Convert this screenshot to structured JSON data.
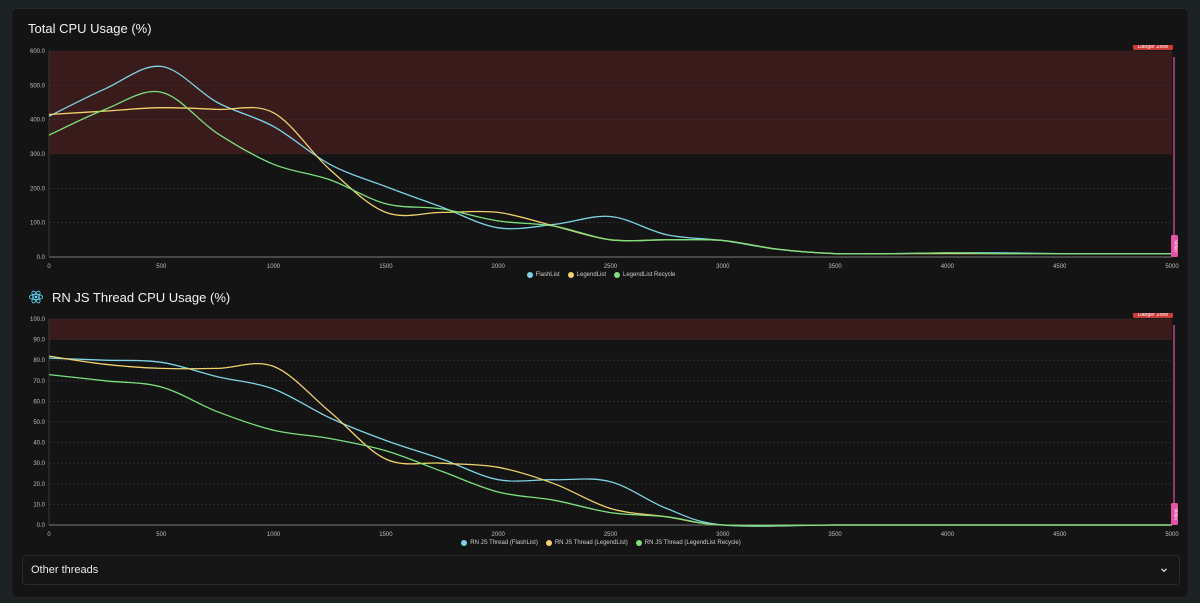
{
  "colors": {
    "flash": "#7fd3e6",
    "legend": "#f1d36b",
    "recycle": "#7de07e",
    "danger_fill": "#3a1b1b",
    "danger_tag": "#cc3a3a",
    "video": "#e255a6"
  },
  "sections": {
    "cpu_title": "Total CPU Usage (%)",
    "js_title": "RN JS Thread CPU Usage (%)",
    "other_threads": "Other threads"
  },
  "chart_data": [
    {
      "type": "line",
      "title": "Total CPU Usage (%)",
      "xlim": [
        0,
        5000
      ],
      "ylim": [
        0,
        600
      ],
      "xticks": [
        0,
        500,
        1000,
        1500,
        2000,
        2500,
        3000,
        3500,
        4000,
        4500,
        5000
      ],
      "yticks": [
        0,
        100,
        200,
        300,
        400,
        500,
        600
      ],
      "danger_zone": {
        "label": "Danger Zone",
        "from": 300,
        "to": 600
      },
      "video_label": "Video",
      "series": [
        {
          "name": "FlashList",
          "color_key": "flash",
          "x": [
            0,
            250,
            500,
            750,
            1000,
            1250,
            1500,
            1750,
            2000,
            2250,
            2500,
            2750,
            3000,
            3250,
            3500,
            3750,
            4000,
            4250,
            4500,
            4750,
            5000
          ],
          "values": [
            410,
            490,
            555,
            450,
            380,
            270,
            205,
            145,
            85,
            95,
            118,
            65,
            48,
            22,
            10,
            10,
            12,
            12,
            10,
            10,
            10
          ]
        },
        {
          "name": "LegendList",
          "color_key": "legend",
          "x": [
            0,
            250,
            500,
            750,
            1000,
            1250,
            1500,
            1750,
            2000,
            2250,
            2500,
            2750,
            3000,
            3250,
            3500,
            3750,
            4000,
            4250,
            4500,
            4750,
            5000
          ],
          "values": [
            415,
            425,
            435,
            430,
            420,
            255,
            130,
            130,
            130,
            90,
            50,
            50,
            48,
            22,
            10,
            10,
            10,
            10,
            10,
            10,
            10
          ]
        },
        {
          "name": "LegendList Recycle",
          "color_key": "recycle",
          "x": [
            0,
            250,
            500,
            750,
            1000,
            1250,
            1500,
            1750,
            2000,
            2250,
            2500,
            2750,
            3000,
            3250,
            3500,
            3750,
            4000,
            4250,
            4500,
            4750,
            5000
          ],
          "values": [
            355,
            430,
            480,
            360,
            270,
            225,
            155,
            140,
            105,
            90,
            50,
            50,
            48,
            22,
            10,
            10,
            12,
            10,
            10,
            10,
            10
          ]
        }
      ]
    },
    {
      "type": "line",
      "title": "RN JS Thread CPU Usage (%)",
      "xlim": [
        0,
        5000
      ],
      "ylim": [
        0,
        100
      ],
      "xticks": [
        0,
        500,
        1000,
        1500,
        2000,
        2500,
        3000,
        3500,
        4000,
        4500,
        5000
      ],
      "yticks": [
        0,
        10,
        20,
        30,
        40,
        50,
        60,
        70,
        80,
        90,
        100
      ],
      "danger_zone": {
        "label": "Danger Zone",
        "from": 90,
        "to": 100
      },
      "video_label": "Video",
      "series": [
        {
          "name": "RN JS Thread (FlashList)",
          "color_key": "flash",
          "x": [
            0,
            250,
            500,
            750,
            1000,
            1250,
            1500,
            1750,
            2000,
            2250,
            2500,
            2750,
            3000,
            3500,
            4000,
            4500,
            5000
          ],
          "values": [
            81,
            80,
            79,
            72,
            66,
            52,
            41,
            32,
            22,
            22,
            21,
            8,
            0,
            0,
            0,
            0,
            0
          ]
        },
        {
          "name": "RN JS Thread (LegendList)",
          "color_key": "legend",
          "x": [
            0,
            250,
            500,
            750,
            1000,
            1250,
            1500,
            1750,
            2000,
            2250,
            2500,
            2750,
            3000,
            3500,
            4000,
            4500,
            5000
          ],
          "values": [
            82,
            78,
            76,
            76,
            77,
            55,
            32,
            30,
            28,
            20,
            8,
            4,
            0,
            0,
            0,
            0,
            0
          ]
        },
        {
          "name": "RN JS Thread (LegendList Recycle)",
          "color_key": "recycle",
          "x": [
            0,
            250,
            500,
            750,
            1000,
            1250,
            1500,
            1750,
            2000,
            2250,
            2500,
            2750,
            3000,
            3500,
            4000,
            4500,
            5000
          ],
          "values": [
            73,
            70,
            67,
            55,
            46,
            42,
            36,
            26,
            16,
            12,
            6,
            4,
            0,
            0,
            0,
            0,
            0
          ]
        }
      ]
    }
  ]
}
